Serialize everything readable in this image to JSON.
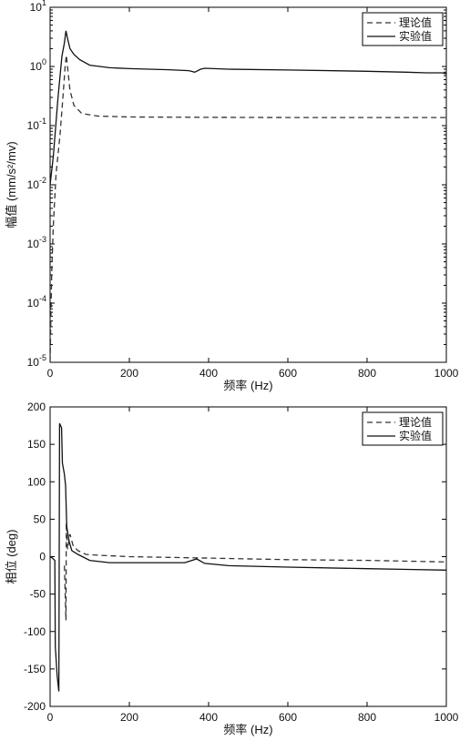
{
  "chart_data": [
    {
      "type": "line",
      "xlabel": "频率 (Hz)",
      "ylabel": "幅值 (mm/s²/mv)",
      "yscale": "log",
      "xlim": [
        0,
        1000
      ],
      "ylim": [
        1e-05,
        10
      ],
      "xticks": [
        "0",
        "200",
        "400",
        "600",
        "800",
        "1000"
      ],
      "yticks": [
        {
          "base": "10",
          "exp": "-5",
          "value": 1e-05
        },
        {
          "base": "10",
          "exp": "-4",
          "value": 0.0001
        },
        {
          "base": "10",
          "exp": "-3",
          "value": 0.001
        },
        {
          "base": "10",
          "exp": "-2",
          "value": 0.01
        },
        {
          "base": "10",
          "exp": "-1",
          "value": 0.1
        },
        {
          "base": "10",
          "exp": "0",
          "value": 1
        },
        {
          "base": "10",
          "exp": "1",
          "value": 10
        }
      ],
      "grid": false,
      "legend_position": "top-right",
      "series": [
        {
          "name": "理论值",
          "style": "dashed",
          "color": "#333333",
          "points": [
            [
              0,
              1e-05
            ],
            [
              4,
              0.0003
            ],
            [
              8,
              0.002
            ],
            [
              15,
              0.015
            ],
            [
              25,
              0.07
            ],
            [
              33,
              0.35
            ],
            [
              38,
              1.0
            ],
            [
              41,
              1.55
            ],
            [
              44,
              1.0
            ],
            [
              50,
              0.4
            ],
            [
              60,
              0.22
            ],
            [
              80,
              0.16
            ],
            [
              120,
              0.145
            ],
            [
              200,
              0.14
            ],
            [
              400,
              0.138
            ],
            [
              600,
              0.137
            ],
            [
              800,
              0.137
            ],
            [
              1000,
              0.137
            ]
          ]
        },
        {
          "name": "实验值",
          "style": "solid",
          "color": "#111111",
          "points": [
            [
              0,
              0.01
            ],
            [
              8,
              0.03
            ],
            [
              20,
              0.3
            ],
            [
              30,
              1.5
            ],
            [
              36,
              2.5
            ],
            [
              40,
              4.0
            ],
            [
              44,
              3.0
            ],
            [
              50,
              2.0
            ],
            [
              60,
              1.6
            ],
            [
              75,
              1.3
            ],
            [
              100,
              1.05
            ],
            [
              150,
              0.95
            ],
            [
              200,
              0.92
            ],
            [
              300,
              0.88
            ],
            [
              350,
              0.85
            ],
            [
              365,
              0.8
            ],
            [
              380,
              0.9
            ],
            [
              390,
              0.93
            ],
            [
              450,
              0.9
            ],
            [
              600,
              0.87
            ],
            [
              800,
              0.83
            ],
            [
              900,
              0.8
            ],
            [
              950,
              0.78
            ],
            [
              990,
              0.78
            ],
            [
              1000,
              0.75
            ]
          ]
        }
      ]
    },
    {
      "type": "line",
      "xlabel": "频率 (Hz)",
      "ylabel": "相位 (deg)",
      "yscale": "linear",
      "xlim": [
        0,
        1000
      ],
      "ylim": [
        -200,
        200
      ],
      "xticks": [
        "0",
        "200",
        "400",
        "600",
        "800",
        "1000"
      ],
      "yticks": [
        "-200",
        "-150",
        "-100",
        "-50",
        "0",
        "50",
        "100",
        "150",
        "200"
      ],
      "grid": false,
      "legend_position": "top-right",
      "series": [
        {
          "name": "理论值",
          "style": "dashed",
          "color": "#333333",
          "points": [
            [
              36,
              -12
            ],
            [
              40,
              -85
            ],
            [
              41,
              45
            ],
            [
              44,
              10
            ],
            [
              50,
              30
            ],
            [
              58,
              15
            ],
            [
              70,
              8
            ],
            [
              90,
              3
            ],
            [
              120,
              2
            ],
            [
              200,
              0
            ],
            [
              400,
              -2
            ],
            [
              600,
              -4
            ],
            [
              800,
              -5
            ],
            [
              1000,
              -7
            ]
          ]
        },
        {
          "name": "实验值",
          "style": "solid",
          "color": "#111111",
          "points": [
            [
              0,
              0
            ],
            [
              6,
              -2
            ],
            [
              12,
              -5
            ],
            [
              13,
              -120
            ],
            [
              18,
              -160
            ],
            [
              22,
              -180
            ],
            [
              24,
              178
            ],
            [
              29,
              172
            ],
            [
              31,
              125
            ],
            [
              36,
              110
            ],
            [
              39,
              95
            ],
            [
              42,
              40
            ],
            [
              48,
              20
            ],
            [
              55,
              8
            ],
            [
              70,
              3
            ],
            [
              100,
              -5
            ],
            [
              150,
              -8
            ],
            [
              250,
              -8
            ],
            [
              340,
              -8
            ],
            [
              370,
              -3
            ],
            [
              390,
              -9
            ],
            [
              450,
              -12
            ],
            [
              600,
              -14
            ],
            [
              800,
              -16
            ],
            [
              900,
              -17
            ],
            [
              1000,
              -18
            ]
          ]
        }
      ]
    }
  ]
}
